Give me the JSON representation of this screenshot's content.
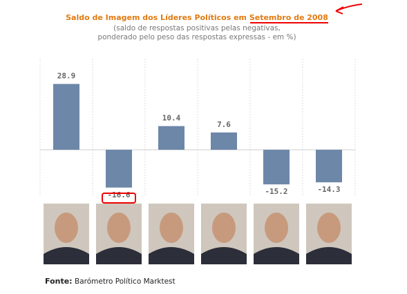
{
  "chart_data": {
    "type": "bar",
    "title": "Saldo de Imagem dos Líderes Políticos em Setembro de 2008",
    "subtitle": [
      "(saldo de respostas positivas pelas negativas,",
      "ponderado pelo peso das respostas expressas - em %)"
    ],
    "values": [
      28.9,
      -16.6,
      10.4,
      7.6,
      -15.2,
      -14.3
    ],
    "color": "#6d87a8",
    "ylim": [
      -20,
      40
    ],
    "source_label": "Fonte:",
    "source": "Barómetro Político Marktest"
  }
}
